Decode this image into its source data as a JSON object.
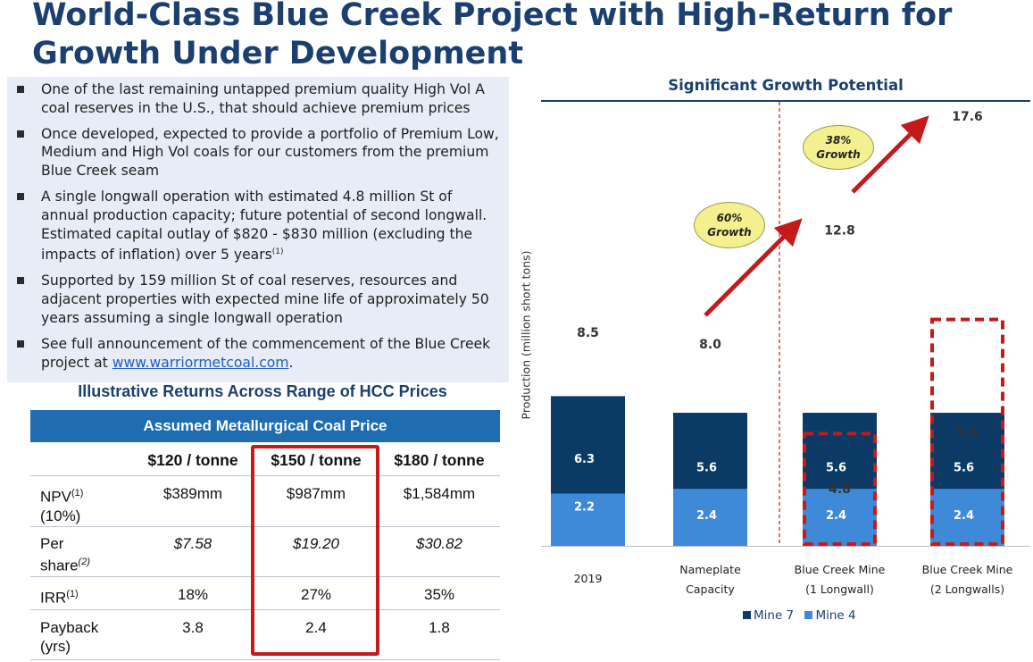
{
  "title": "World-Class Blue Creek Project with High-Return for Growth Under Development",
  "bullets": [
    {
      "text": "One of the last remaining untapped premium quality High Vol A coal reserves in the U.S., that should achieve premium prices"
    },
    {
      "text": "Once developed, expected to provide a portfolio of Premium Low, Medium and High Vol coals for our customers from the premium Blue Creek seam"
    },
    {
      "text": "A single longwall operation with estimated 4.8 million St of annual production capacity; future potential of second longwall. Estimated capital outlay of $820 - $830 million (excluding the impacts of inflation) over 5 years",
      "sup": "(1)"
    },
    {
      "text": "Supported by 159 million St of coal reserves, resources and adjacent properties with expected mine life of approximately 50 years assuming a single longwall operation"
    },
    {
      "text": "See full announcement of the commencement of the Blue Creek project at ",
      "link": "www.warriormetcoal.com",
      "after": "."
    }
  ],
  "table": {
    "title": "Illustrative Returns Across Range of HCC Prices",
    "header": "Assumed Metallurgical Coal Price",
    "columns": [
      "$120 / tonne",
      "$150 / tonne",
      "$180 / tonne"
    ],
    "rows": [
      {
        "label": "NPV",
        "sup": "(1)",
        "label2": "(10%)",
        "values": [
          "$389mm",
          "$987mm",
          "$1,584mm"
        ],
        "italic": false,
        "supItalic": false
      },
      {
        "label": "Per",
        "label2": "share",
        "sup2": "(2)",
        "values": [
          "$7.58",
          "$19.20",
          "$30.82"
        ],
        "italic": true
      },
      {
        "label": "IRR",
        "sup": "(1)",
        "values": [
          "18%",
          "27%",
          "35%"
        ],
        "italic": false
      },
      {
        "label": "Payback",
        "label2": "(yrs)",
        "values": [
          "3.8",
          "2.4",
          "1.8"
        ],
        "italic": false
      }
    ]
  },
  "chart_data": {
    "type": "bar",
    "stacked": true,
    "title": "Significant Growth Potential",
    "ylabel": "Production (million short tons)",
    "categories": [
      [
        "2019"
      ],
      [
        "Nameplate",
        "Capacity"
      ],
      [
        "Blue Creek Mine",
        "(1 Longwall)"
      ],
      [
        "Blue Creek Mine",
        "(2 Longwalls)"
      ]
    ],
    "series": [
      {
        "name": "Mine 7",
        "color": "#0b3a66",
        "values": [
          6.3,
          5.6,
          5.6,
          5.6
        ]
      },
      {
        "name": "Mine 4",
        "color": "#3f8ad8",
        "values": [
          2.2,
          2.4,
          2.4,
          2.4
        ]
      },
      {
        "name": "",
        "color": "none",
        "dashed": true,
        "values": [
          0,
          0,
          4.8,
          9.6
        ]
      }
    ],
    "totals": [
      "8.5",
      "8.0",
      "12.8",
      "17.6"
    ],
    "annotations": [
      {
        "text": "60% Growth"
      },
      {
        "text": "38% Growth"
      }
    ],
    "ylim": [
      0,
      19
    ],
    "legend": "bottom",
    "grid": false,
    "divider_after_category": 1
  }
}
